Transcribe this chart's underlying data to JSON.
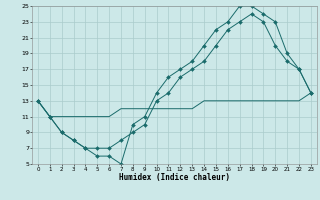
{
  "xlabel": "Humidex (Indice chaleur)",
  "bg_color": "#cce8e8",
  "grid_color": "#aacccc",
  "line_color": "#1a6b6b",
  "xlim": [
    -0.5,
    23.5
  ],
  "ylim": [
    5,
    25
  ],
  "xticks": [
    0,
    1,
    2,
    3,
    4,
    5,
    6,
    7,
    8,
    9,
    10,
    11,
    12,
    13,
    14,
    15,
    16,
    17,
    18,
    19,
    20,
    21,
    22,
    23
  ],
  "yticks": [
    5,
    7,
    9,
    11,
    13,
    15,
    17,
    19,
    21,
    23,
    25
  ],
  "line1_x": [
    0,
    1,
    2,
    3,
    4,
    5,
    6,
    7,
    8,
    9,
    10,
    11,
    12,
    13,
    14,
    15,
    16,
    17,
    18,
    19,
    20,
    21,
    22,
    23
  ],
  "line1_y": [
    13,
    11,
    9,
    8,
    7,
    6,
    6,
    5,
    10,
    11,
    14,
    16,
    17,
    18,
    20,
    22,
    23,
    25,
    25,
    24,
    23,
    19,
    17,
    14
  ],
  "line2_x": [
    0,
    1,
    2,
    3,
    4,
    5,
    6,
    7,
    8,
    9,
    10,
    11,
    12,
    13,
    14,
    15,
    16,
    17,
    18,
    19,
    20,
    21,
    22,
    23
  ],
  "line2_y": [
    13,
    11,
    9,
    8,
    7,
    7,
    7,
    8,
    9,
    10,
    13,
    14,
    16,
    17,
    18,
    20,
    22,
    23,
    24,
    23,
    20,
    18,
    17,
    14
  ],
  "line3_x": [
    0,
    1,
    2,
    3,
    4,
    5,
    6,
    7,
    8,
    9,
    10,
    11,
    12,
    13,
    14,
    15,
    16,
    17,
    18,
    19,
    20,
    21,
    22,
    23
  ],
  "line3_y": [
    13,
    11,
    11,
    11,
    11,
    11,
    11,
    12,
    12,
    12,
    12,
    12,
    12,
    12,
    13,
    13,
    13,
    13,
    13,
    13,
    13,
    13,
    13,
    14
  ]
}
